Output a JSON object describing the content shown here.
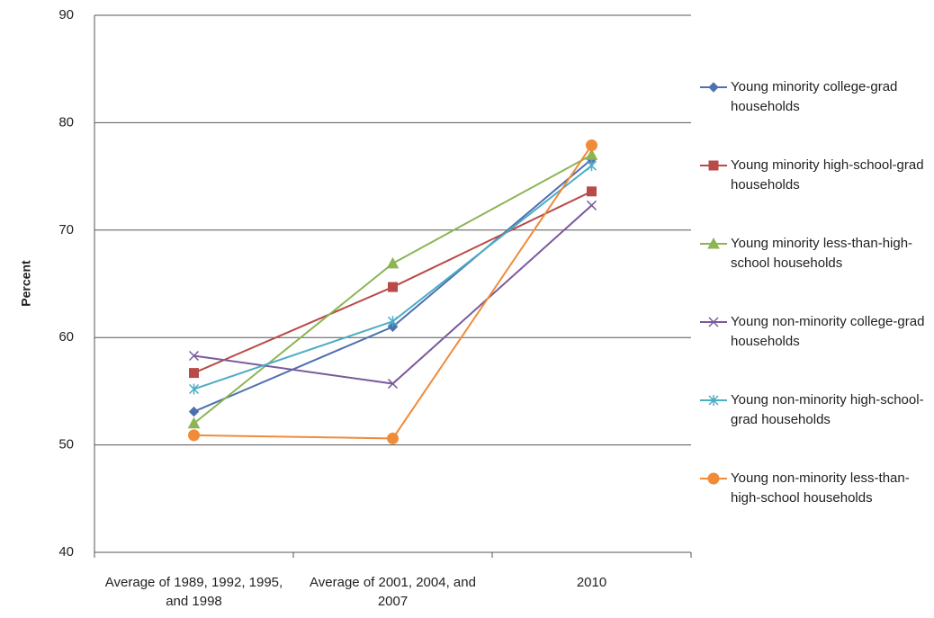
{
  "chart_data": {
    "type": "line",
    "y_label": "Percent",
    "categories": [
      "Average of 1989, 1992, 1995, and 1998",
      "Average of 2001, 2004, and 2007",
      "2010"
    ],
    "ylim": [
      40,
      90
    ],
    "yticks": [
      40,
      50,
      60,
      70,
      80,
      90
    ],
    "grid": true,
    "series": [
      {
        "name": "Young minority college-grad households",
        "color": "#4f6fb0",
        "marker": "diamond",
        "values": [
          53.1,
          61.0,
          76.6
        ]
      },
      {
        "name": "Young minority high-school-grad households",
        "color": "#b94a48",
        "marker": "square",
        "values": [
          56.7,
          64.7,
          73.6
        ]
      },
      {
        "name": "Young minority less-than-high-school households",
        "color": "#8db455",
        "marker": "triangle",
        "values": [
          52.0,
          66.9,
          77.0
        ]
      },
      {
        "name": "Young non-minority college-grad households",
        "color": "#7a5a9c",
        "marker": "x",
        "values": [
          58.3,
          55.7,
          72.3
        ]
      },
      {
        "name": "Young non-minority high-school-grad households",
        "color": "#4bacc6",
        "marker": "star",
        "values": [
          55.2,
          61.5,
          76.0
        ]
      },
      {
        "name": "Young non-minority less-than-high-school households",
        "color": "#f08b3a",
        "marker": "circle",
        "values": [
          50.9,
          50.6,
          77.9
        ]
      }
    ]
  }
}
